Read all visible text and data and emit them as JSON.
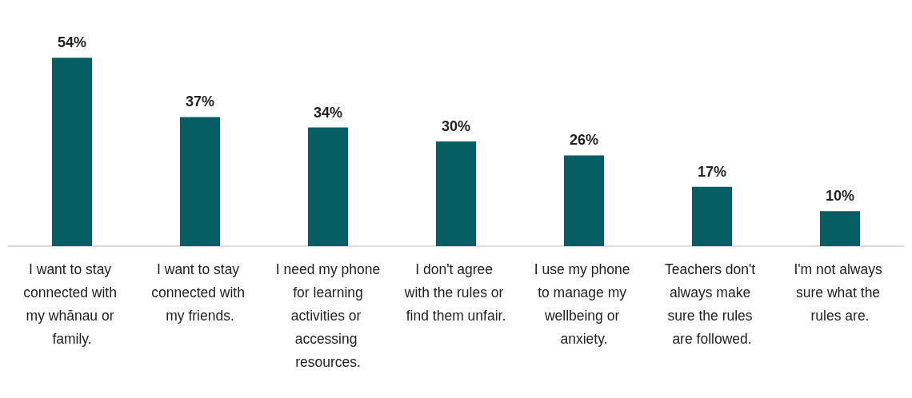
{
  "chart_data": {
    "type": "bar",
    "categories": [
      "I want to stay connected with my whānau or family.",
      "I want to stay connected with my friends.",
      "I need my phone for learning activities or accessing resources.",
      "I don't agree with the rules or find them unfair.",
      "I use my phone to manage my wellbeing or anxiety.",
      "Teachers don't always make sure the rules are followed.",
      "I'm not always sure what the rules are."
    ],
    "values": [
      54,
      37,
      34,
      30,
      26,
      17,
      10
    ],
    "value_labels": [
      "54%",
      "37%",
      "34%",
      "30%",
      "26%",
      "17%",
      "10%"
    ],
    "color": "#035e63"
  }
}
